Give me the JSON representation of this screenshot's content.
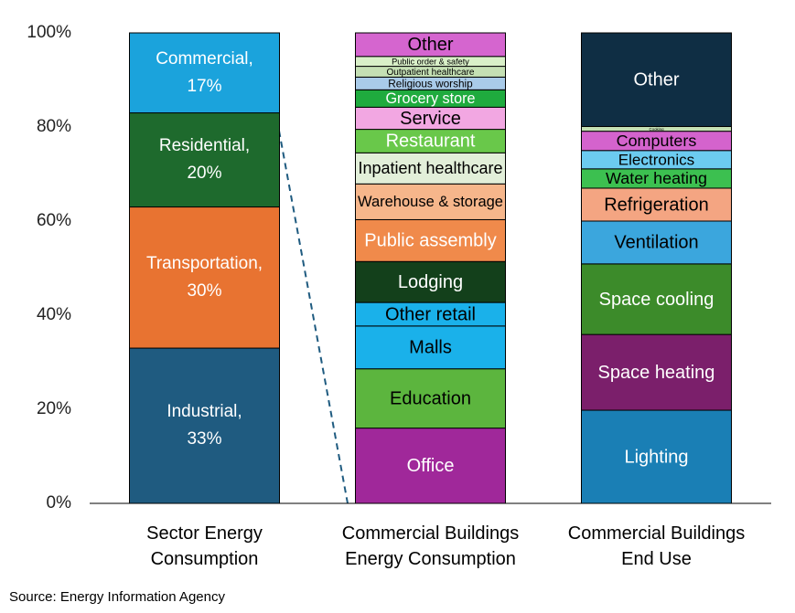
{
  "chart_data": {
    "type": "stacked_bar",
    "categories": [
      "Sector Energy\nConsumption",
      "Commercial Buildings\nEnergy Consumption",
      "Commercial Buildings\nEnd Use"
    ],
    "ylim": [
      0,
      100
    ],
    "yticks": [
      {
        "value": 0,
        "label": "0%"
      },
      {
        "value": 20,
        "label": "20%"
      },
      {
        "value": 40,
        "label": "40%"
      },
      {
        "value": 60,
        "label": "60%"
      },
      {
        "value": 80,
        "label": "80%"
      },
      {
        "value": 100,
        "label": "100%"
      }
    ],
    "grid": false,
    "stacks": [
      {
        "segments": [
          {
            "name": "Industrial,",
            "value": 33,
            "value_label": "33%",
            "color": "#1f5b80",
            "label_color": "#ffffff"
          },
          {
            "name": "Transportation,",
            "value": 30,
            "value_label": "30%",
            "color": "#e87331",
            "label_color": "#ffffff"
          },
          {
            "name": "Residential,",
            "value": 20,
            "value_label": "20%",
            "color": "#1e6a2d",
            "label_color": "#ffffff"
          },
          {
            "name": "Commercial,",
            "value": 17,
            "value_label": "17%",
            "color": "#1ba3dc",
            "label_color": "#ffffff"
          }
        ]
      },
      {
        "segments": [
          {
            "name": "Office",
            "value": 16,
            "color": "#a0289a",
            "label_color": "#ffffff"
          },
          {
            "name": "Education",
            "value": 12.6,
            "color": "#5cb53e",
            "label_color": "#000000"
          },
          {
            "name": "Malls",
            "value": 9.1,
            "color": "#1ab1ea",
            "label_color": "#000000"
          },
          {
            "name": "Other retail",
            "value": 5,
            "color": "#1ab1ea",
            "label_color": "#000000"
          },
          {
            "name": "Lodging",
            "value": 8.7,
            "color": "#13401b",
            "label_color": "#ffffff"
          },
          {
            "name": "Public assembly",
            "value": 8.9,
            "color": "#f08a4b",
            "label_color": "#ffffff"
          },
          {
            "name": "Warehouse & storage",
            "value": 7.6,
            "color": "#f6b68b",
            "label_color": "#000000"
          },
          {
            "name": "Inpatient healthcare",
            "value": 6.6,
            "color": "#e2efd9",
            "label_color": "#000000"
          },
          {
            "name": "Restaurant",
            "value": 5,
            "color": "#69c84a",
            "label_color": "#ffffff"
          },
          {
            "name": "Service",
            "value": 4.7,
            "color": "#f2a7e2",
            "label_color": "#000000"
          },
          {
            "name": "Grocery store",
            "value": 3.7,
            "color": "#1fab3e",
            "label_color": "#ffffff"
          },
          {
            "name": "Religious worship",
            "value": 2.7,
            "color": "#a9cbe9",
            "label_color": "#000000"
          },
          {
            "name": "Outpatient healthcare",
            "value": 2.3,
            "color": "#c5e0b4",
            "label_color": "#000000"
          },
          {
            "name": "Public order & safety",
            "value": 2.1,
            "color": "#d9f0c8",
            "label_color": "#000000"
          },
          {
            "name": "Other",
            "value": 5,
            "color": "#d565cf",
            "label_color": "#000000"
          }
        ]
      },
      {
        "segments": [
          {
            "name": "Lighting",
            "value": 19.8,
            "color": "#1a7fb5",
            "label_color": "#ffffff"
          },
          {
            "name": "Space heating",
            "value": 16.1,
            "color": "#7b1f6b",
            "label_color": "#ffffff"
          },
          {
            "name": "Space cooling",
            "value": 15,
            "color": "#3c8b2a",
            "label_color": "#ffffff"
          },
          {
            "name": "Ventilation",
            "value": 9.1,
            "color": "#3ba6dd",
            "label_color": "#000000"
          },
          {
            "name": "Refrigeration",
            "value": 7,
            "color": "#f4a582",
            "label_color": "#000000"
          },
          {
            "name": "Water heating",
            "value": 4.1,
            "color": "#3cc050",
            "label_color": "#000000"
          },
          {
            "name": "Electronics",
            "value": 3.9,
            "color": "#6ccbf0",
            "label_color": "#000000"
          },
          {
            "name": "Computers",
            "value": 4.1,
            "color": "#d463cd",
            "label_color": "#000000"
          },
          {
            "name": "Cooking",
            "value": 1,
            "color": "#c5e0b4",
            "label_color": "#000000"
          },
          {
            "name": "Other",
            "value": 19.9,
            "color": "#0f2e44",
            "label_color": "#ffffff"
          }
        ]
      }
    ],
    "source": "Source: Energy Information Agency"
  }
}
